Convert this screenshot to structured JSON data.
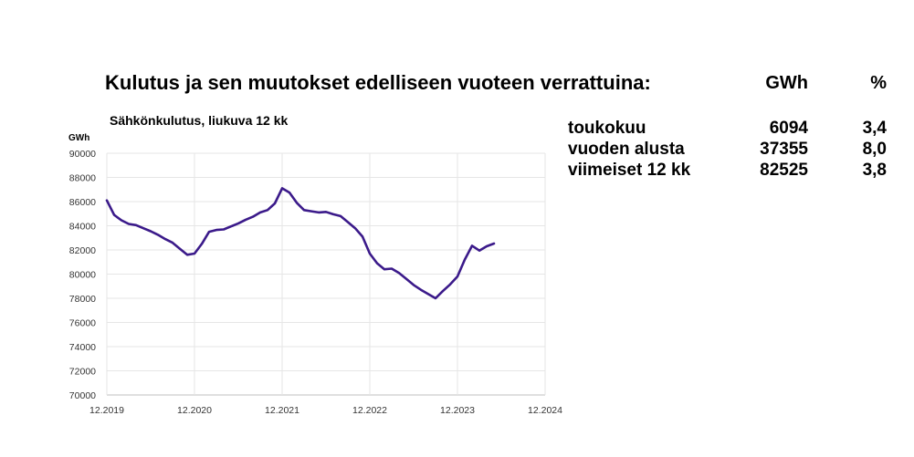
{
  "header": {
    "title": "Kulutus ja sen muutokset edelliseen vuoteen verrattuina:",
    "col_gwh": "GWh",
    "col_pct": "%"
  },
  "stats": [
    {
      "label": "toukokuu",
      "gwh": "6094",
      "pct": "3,4"
    },
    {
      "label": "vuoden alusta",
      "gwh": "37355",
      "pct": "8,0"
    },
    {
      "label": "viimeiset 12 kk",
      "gwh": "82525",
      "pct": "3,8"
    }
  ],
  "chart_data": {
    "type": "line",
    "title": "Sähkönkulutus, liukuva 12 kk",
    "ylabel": "GWh",
    "xlabel": "",
    "ylim": [
      70000,
      90000
    ],
    "yticks": [
      70000,
      72000,
      74000,
      76000,
      78000,
      80000,
      82000,
      84000,
      86000,
      88000,
      90000
    ],
    "xticks": [
      "12.2019",
      "12.2020",
      "12.2021",
      "12.2022",
      "12.2023",
      "12.2024"
    ],
    "grid": true,
    "line_color": "#3b1a8a",
    "series": [
      {
        "x": [
          "2019-12",
          "2020-01",
          "2020-02",
          "2020-03",
          "2020-04",
          "2020-05",
          "2020-06",
          "2020-07",
          "2020-08",
          "2020-09",
          "2020-10",
          "2020-11",
          "2020-12",
          "2021-01",
          "2021-02",
          "2021-03",
          "2021-04",
          "2021-05",
          "2021-06",
          "2021-07",
          "2021-08",
          "2021-09",
          "2021-10",
          "2021-11",
          "2021-12",
          "2022-01",
          "2022-02",
          "2022-03",
          "2022-04",
          "2022-05",
          "2022-06",
          "2022-07",
          "2022-08",
          "2022-09",
          "2022-10",
          "2022-11",
          "2022-12",
          "2023-01",
          "2023-02",
          "2023-03",
          "2023-04",
          "2023-05",
          "2023-06",
          "2023-07",
          "2023-08",
          "2023-09",
          "2023-10",
          "2023-11",
          "2023-12",
          "2024-01",
          "2024-02",
          "2024-03",
          "2024-04",
          "2024-05"
        ],
        "values": [
          86100,
          84900,
          84450,
          84150,
          84050,
          83800,
          83550,
          83250,
          82900,
          82600,
          82100,
          81600,
          81700,
          82500,
          83500,
          83650,
          83700,
          83950,
          84200,
          84500,
          84750,
          85100,
          85300,
          85850,
          87100,
          86750,
          85900,
          85300,
          85200,
          85100,
          85150,
          84950,
          84800,
          84300,
          83800,
          83100,
          81700,
          80900,
          80400,
          80450,
          80100,
          79600,
          79100,
          78700,
          78350,
          78000,
          78600,
          79150,
          79800,
          81200,
          82350,
          81950,
          82300,
          82525
        ]
      }
    ]
  }
}
